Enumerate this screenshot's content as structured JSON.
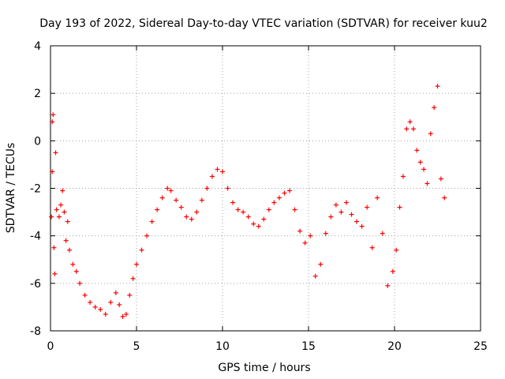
{
  "chart_data": {
    "type": "scatter",
    "title": "Day 193 of 2022, Sidereal Day-to-day VTEC variation (SDTVAR) for receiver kuu2",
    "xlabel": "GPS time / hours",
    "ylabel": "SDTVAR / TECUs",
    "xlim": [
      0,
      25
    ],
    "ylim": [
      -8,
      4
    ],
    "xticks": [
      0,
      5,
      10,
      15,
      20,
      25
    ],
    "xtick_labels": [
      "0",
      "5",
      "10",
      "15",
      "20",
      "25"
    ],
    "yticks": [
      -8,
      -6,
      -4,
      -2,
      0,
      2,
      4
    ],
    "ytick_labels": [
      "-8",
      "-6",
      "-4",
      "-2",
      "0",
      "2",
      "4"
    ],
    "grid": true,
    "marker": "+",
    "series": [
      {
        "name": "SDTVAR",
        "color": "#ff0000",
        "points": [
          [
            0.05,
            -3.2
          ],
          [
            0.1,
            -1.3
          ],
          [
            0.1,
            0.8
          ],
          [
            0.15,
            1.1
          ],
          [
            0.2,
            -4.5
          ],
          [
            0.25,
            -5.6
          ],
          [
            0.3,
            -0.5
          ],
          [
            0.35,
            -2.9
          ],
          [
            0.5,
            -3.2
          ],
          [
            0.6,
            -2.7
          ],
          [
            0.7,
            -2.1
          ],
          [
            0.8,
            -3.0
          ],
          [
            0.9,
            -4.2
          ],
          [
            1.0,
            -3.4
          ],
          [
            1.1,
            -4.6
          ],
          [
            1.3,
            -5.2
          ],
          [
            1.5,
            -5.5
          ],
          [
            1.7,
            -6.0
          ],
          [
            2.0,
            -6.5
          ],
          [
            2.3,
            -6.8
          ],
          [
            2.6,
            -7.0
          ],
          [
            2.9,
            -7.1
          ],
          [
            3.2,
            -7.3
          ],
          [
            3.5,
            -6.8
          ],
          [
            3.8,
            -6.4
          ],
          [
            4.0,
            -6.9
          ],
          [
            4.2,
            -7.4
          ],
          [
            4.4,
            -7.3
          ],
          [
            4.6,
            -6.5
          ],
          [
            4.8,
            -5.8
          ],
          [
            5.0,
            -5.2
          ],
          [
            5.3,
            -4.6
          ],
          [
            5.6,
            -4.0
          ],
          [
            5.9,
            -3.4
          ],
          [
            6.2,
            -2.9
          ],
          [
            6.5,
            -2.4
          ],
          [
            6.8,
            -2.0
          ],
          [
            7.0,
            -2.1
          ],
          [
            7.3,
            -2.5
          ],
          [
            7.6,
            -2.8
          ],
          [
            7.9,
            -3.2
          ],
          [
            8.2,
            -3.3
          ],
          [
            8.5,
            -3.0
          ],
          [
            8.8,
            -2.5
          ],
          [
            9.1,
            -2.0
          ],
          [
            9.4,
            -1.5
          ],
          [
            9.7,
            -1.2
          ],
          [
            10.0,
            -1.3
          ],
          [
            10.3,
            -2.0
          ],
          [
            10.6,
            -2.6
          ],
          [
            10.9,
            -2.9
          ],
          [
            11.2,
            -3.0
          ],
          [
            11.5,
            -3.2
          ],
          [
            11.8,
            -3.5
          ],
          [
            12.1,
            -3.6
          ],
          [
            12.4,
            -3.3
          ],
          [
            12.7,
            -2.9
          ],
          [
            13.0,
            -2.6
          ],
          [
            13.3,
            -2.4
          ],
          [
            13.6,
            -2.2
          ],
          [
            13.9,
            -2.1
          ],
          [
            14.2,
            -2.9
          ],
          [
            14.5,
            -3.8
          ],
          [
            14.8,
            -4.3
          ],
          [
            15.1,
            -4.0
          ],
          [
            15.4,
            -5.7
          ],
          [
            15.7,
            -5.2
          ],
          [
            16.0,
            -3.9
          ],
          [
            16.3,
            -3.2
          ],
          [
            16.6,
            -2.7
          ],
          [
            16.9,
            -3.0
          ],
          [
            17.2,
            -2.6
          ],
          [
            17.5,
            -3.1
          ],
          [
            17.8,
            -3.4
          ],
          [
            18.1,
            -3.6
          ],
          [
            18.4,
            -2.8
          ],
          [
            18.7,
            -4.5
          ],
          [
            19.0,
            -2.4
          ],
          [
            19.3,
            -3.9
          ],
          [
            19.6,
            -6.1
          ],
          [
            19.9,
            -5.5
          ],
          [
            20.1,
            -4.6
          ],
          [
            20.3,
            -2.8
          ],
          [
            20.5,
            -1.5
          ],
          [
            20.7,
            0.5
          ],
          [
            20.9,
            0.8
          ],
          [
            21.1,
            0.5
          ],
          [
            21.3,
            -0.4
          ],
          [
            21.5,
            -0.9
          ],
          [
            21.7,
            -1.2
          ],
          [
            21.9,
            -1.8
          ],
          [
            22.1,
            0.3
          ],
          [
            22.3,
            1.4
          ],
          [
            22.5,
            2.3
          ],
          [
            22.7,
            -1.6
          ],
          [
            22.9,
            -2.4
          ]
        ]
      }
    ]
  }
}
